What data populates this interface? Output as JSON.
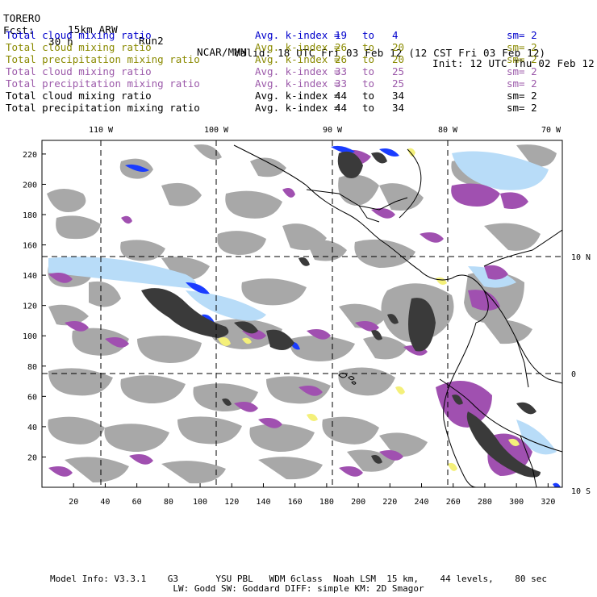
{
  "header": {
    "model": "TORERO",
    "resolution": "15km ARW",
    "run": "Run2",
    "org": "NCAR/MMM",
    "init": "Init: 12 UTC Thu 02 Feb 12",
    "fcst_label": "Fcst:",
    "fcst_value": "30 h",
    "valid": "Valid: 18 UTC Fri 03 Feb 12 (12 CST Fri 03 Feb 12)"
  },
  "colors": {
    "blue": "#0000cc",
    "olive": "#8a8a00",
    "purple": "#9c5aaa",
    "black": "#000000",
    "fill_purple": "#a050b0",
    "fill_gray": "#a8a8a8",
    "fill_dark": "#3a3a3a",
    "fill_lightblue": "#b8dcf8",
    "fill_blue": "#1a3cff",
    "fill_yellow": "#f4f07a"
  },
  "legend": [
    {
      "name": "Total cloud mixing ratio",
      "avg_label": "Avg. k-index =",
      "k_from": "19",
      "to": "to",
      "k_to": "4",
      "sm": "sm= 2",
      "color": "#0000cc"
    },
    {
      "name": "Total cloud mixing ratio",
      "avg_label": "Avg. k-index =",
      "k_from": "26",
      "to": "to",
      "k_to": "20",
      "sm": "sm= 2",
      "color": "#8a8a00"
    },
    {
      "name": "Total precipitation mixing ratio",
      "avg_label": "Avg. k-index =",
      "k_from": "26",
      "to": "to",
      "k_to": "20",
      "sm": "sm= 2",
      "color": "#8a8a00"
    },
    {
      "name": "Total cloud mixing ratio",
      "avg_label": "Avg. k-index =",
      "k_from": "33",
      "to": "to",
      "k_to": "25",
      "sm": "sm= 2",
      "color": "#9c5aaa"
    },
    {
      "name": "Total precipitation mixing ratio",
      "avg_label": "Avg. k-index =",
      "k_from": "33",
      "to": "to",
      "k_to": "25",
      "sm": "sm= 2",
      "color": "#9c5aaa"
    },
    {
      "name": "Total cloud mixing ratio",
      "avg_label": "Avg. k-index =",
      "k_from": "44",
      "to": "to",
      "k_to": "34",
      "sm": "sm= 2",
      "color": "#000000"
    },
    {
      "name": "Total precipitation mixing ratio",
      "avg_label": "Avg. k-index =",
      "k_from": "44",
      "to": "to",
      "k_to": "34",
      "sm": "sm= 2",
      "color": "#000000"
    }
  ],
  "map": {
    "lon_labels": [
      "110 W",
      "100 W",
      "90 W",
      "80 W",
      "70 W"
    ],
    "lat_labels": [
      "10 N",
      "0",
      "10 S"
    ],
    "x_ticks": [
      "20",
      "40",
      "60",
      "80",
      "100",
      "120",
      "140",
      "160",
      "180",
      "200",
      "220",
      "240",
      "260",
      "280",
      "300",
      "320"
    ],
    "y_ticks": [
      "220",
      "200",
      "180",
      "160",
      "140",
      "120",
      "100",
      "80",
      "60",
      "40",
      "20"
    ]
  },
  "footer": {
    "line1": "Model Info: V3.3.1    G3       YSU PBL   WDM 6class  Noah LSM  15 km,    44 levels,    80 sec",
    "line2": "LW: Godd SW: Goddard DIFF: simple KM: 2D Smagor"
  }
}
